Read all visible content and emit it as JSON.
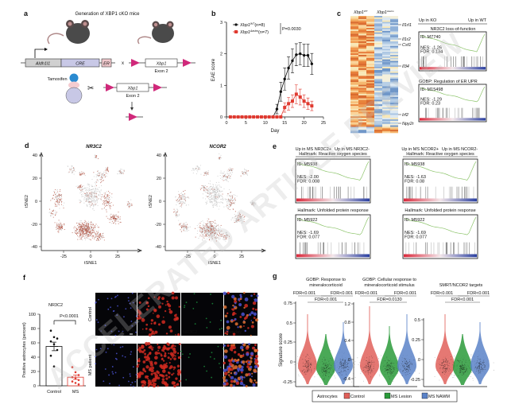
{
  "panel_labels": {
    "a": "a",
    "b": "b",
    "c": "c",
    "d": "d",
    "e": "e",
    "f": "f",
    "g": "g"
  },
  "watermark": "ACCELERATED ARTICLE PREVIEW",
  "panel_a": {
    "title": "Generation of XBP1 cKO mice",
    "promoter": "Aldh1l1",
    "cre": "CRE",
    "er": "ER",
    "cross": "x",
    "gene": "Xbp1",
    "exon": "Exon 2",
    "tamoxifen": "Tamoxifen"
  },
  "panel_b": {
    "ylabel": "EAE score",
    "xlabel": "Day",
    "legend_wt": "Xbp1",
    "legend_wt_sup": "WT",
    "legend_wt_n": "(n=8)",
    "legend_ko": "Xbp1",
    "legend_ko_sup": "Δastro",
    "legend_ko_n": "(n=7)",
    "pvalue": "P=0.0030"
  },
  "panel_c": {
    "col_wt": "Xbp1",
    "col_wt_sup": "WT",
    "col_ko": "Xbp1",
    "col_ko_sup": "Δastro",
    "genes": [
      "Il1rl1",
      "Il1r2",
      "Csf1",
      "Il34",
      "Irf2",
      "Npy2r"
    ],
    "up_ko": "Up in KO",
    "up_wt": "Up in WT",
    "gsea": [
      {
        "title": "NR3C2 loss-of-function",
        "id": "ID: M7740",
        "nes": "NES: -1.26",
        "fdr": "FDR: 0.134"
      },
      {
        "title": "GOBP: Regulation of ER UPR",
        "id": "ID: M15498",
        "nes": "NES: -1.29",
        "fdr": "FDR: 0.23"
      }
    ]
  },
  "panel_d": {
    "plots": [
      {
        "title": "NR3C2",
        "xlabel": "tSNE1",
        "ylabel": "tSNE2"
      },
      {
        "title": "NCOR2",
        "xlabel": "tSNE1",
        "ylabel": "tSNE2"
      }
    ],
    "xticks": [
      "-25",
      "0",
      "25"
    ],
    "yticks": [
      "40",
      "20",
      "0",
      "-20",
      "-40"
    ]
  },
  "panel_e": {
    "headers": [
      {
        "left": "Up in MS NR3C2+",
        "right": "Up in MS NR3C2-"
      },
      {
        "left": "Up in MS NCOR2+",
        "right": "Up in MS NCOR2-"
      }
    ],
    "gsea": [
      {
        "title": "Hallmark: Reactive oxygen species",
        "id": "ID: M5938",
        "nes": "NES: -2.00",
        "fdr": "FDR: 0.008"
      },
      {
        "title": "Hallmark: Reactive oxygen species",
        "id": "ID: M5938",
        "nes": "NES: -1.63",
        "fdr": "FDR: 0.08"
      },
      {
        "title": "Hallmark: Unfolded protein response",
        "id": "ID: M5922",
        "nes": "NES: -1.69",
        "fdr": "FDR: 0.077"
      },
      {
        "title": "Hallmark: Unfolded protein response",
        "id": "ID: M5922",
        "nes": "NES: -1.69",
        "fdr": "FDR: 0.077"
      }
    ]
  },
  "panel_f": {
    "title": "NR3C2",
    "ylabel": "Positive astrocytes (percent)",
    "pvalue": "P<0.0001",
    "row_labels": [
      "Control",
      "MS patient"
    ],
    "channels": [
      "DAPI",
      "GFAP",
      "NR3C2",
      "Overlay"
    ],
    "scale_bar": "10 μm"
  },
  "panel_g": {
    "ylabel": "Signature score",
    "panels": [
      {
        "title1": "GOBP: Response to",
        "title2": "mineralocorticoid",
        "fdr_a": "FDR<0.001",
        "fdr_b": "FDR<0.001",
        "fdr_c": "FDR<0.001",
        "yticks": [
          "0.75",
          "0.5",
          "0.25",
          "0",
          "-0.25"
        ]
      },
      {
        "title1": "GOBP: Cellular response to",
        "title2": "mineralocorticoid stimulus",
        "fdr_a": "FDR<0.001",
        "fdr_b": "FDR<0.001",
        "fdr_c": "FDR=0.0130",
        "yticks": [
          "1.2",
          "0.8",
          "0.4",
          "0",
          "-0.4"
        ]
      },
      {
        "title1": "",
        "title2": "SMRT/NCOR2 targets",
        "fdr_a": "FDR<0.001",
        "fdr_b": "FDR<0.001",
        "fdr_c": "FDR<0.001",
        "yticks": [
          "0.5",
          "0.25",
          "0",
          "-0.25"
        ]
      }
    ],
    "legend_title": "Astrocytes",
    "legend": [
      {
        "label": "Control",
        "color": "#e0605a"
      },
      {
        "label": "MS Lesion",
        "color": "#2a9a3a"
      },
      {
        "label": "MS NAWM",
        "color": "#5a82c8"
      }
    ]
  },
  "chart_data": [
    {
      "type": "line",
      "title": "",
      "xlabel": "Day",
      "ylabel": "EAE score",
      "xlim": [
        0,
        25
      ],
      "ylim": [
        0,
        3
      ],
      "xticks": [
        0,
        5,
        10,
        15,
        20,
        25
      ],
      "yticks": [
        0,
        1,
        2,
        3
      ],
      "x": [
        1,
        2,
        3,
        4,
        5,
        6,
        7,
        8,
        9,
        10,
        11,
        12,
        13,
        14,
        15,
        16,
        17,
        18,
        19,
        20,
        21,
        22
      ],
      "series": [
        {
          "name": "Xbp1 WT (n=8)",
          "color": "#111111",
          "values": [
            0,
            0,
            0,
            0,
            0,
            0,
            0,
            0,
            0,
            0,
            0,
            0,
            0.25,
            0.8,
            1.2,
            1.55,
            1.78,
            1.97,
            2.0,
            1.95,
            1.95,
            1.68
          ],
          "errors": [
            0,
            0,
            0,
            0,
            0,
            0,
            0,
            0,
            0,
            0,
            0,
            0,
            0.15,
            0.3,
            0.35,
            0.35,
            0.38,
            0.35,
            0.35,
            0.35,
            0.35,
            0.33
          ]
        },
        {
          "name": "Xbp1 Δastro (n=7)",
          "color": "#e03a30",
          "values": [
            0,
            0,
            0,
            0,
            0,
            0,
            0,
            0,
            0,
            0,
            0,
            0,
            0,
            0,
            0.3,
            0.42,
            0.5,
            0.72,
            0.63,
            0.5,
            0.42,
            0.35
          ],
          "errors": [
            0,
            0,
            0,
            0,
            0,
            0,
            0,
            0,
            0,
            0,
            0,
            0,
            0,
            0,
            0.15,
            0.2,
            0.2,
            0.3,
            0.25,
            0.2,
            0.18,
            0.15
          ]
        }
      ],
      "annotation": "P=0.0030"
    },
    {
      "type": "bar",
      "title": "NR3C2",
      "categories": [
        "Control",
        "MS"
      ],
      "values": [
        55,
        12
      ],
      "errors": [
        6,
        3
      ],
      "points": [
        [
          77,
          68,
          66,
          62,
          58,
          50,
          42,
          27
        ],
        [
          26,
          19,
          15,
          12,
          10,
          8,
          6,
          4,
          2
        ]
      ],
      "ylabel": "Positive astrocytes (percent)",
      "ylim": [
        0,
        100
      ],
      "yticks": [
        0,
        20,
        40,
        60,
        80,
        100
      ],
      "annotation": "P<0.0001"
    }
  ]
}
